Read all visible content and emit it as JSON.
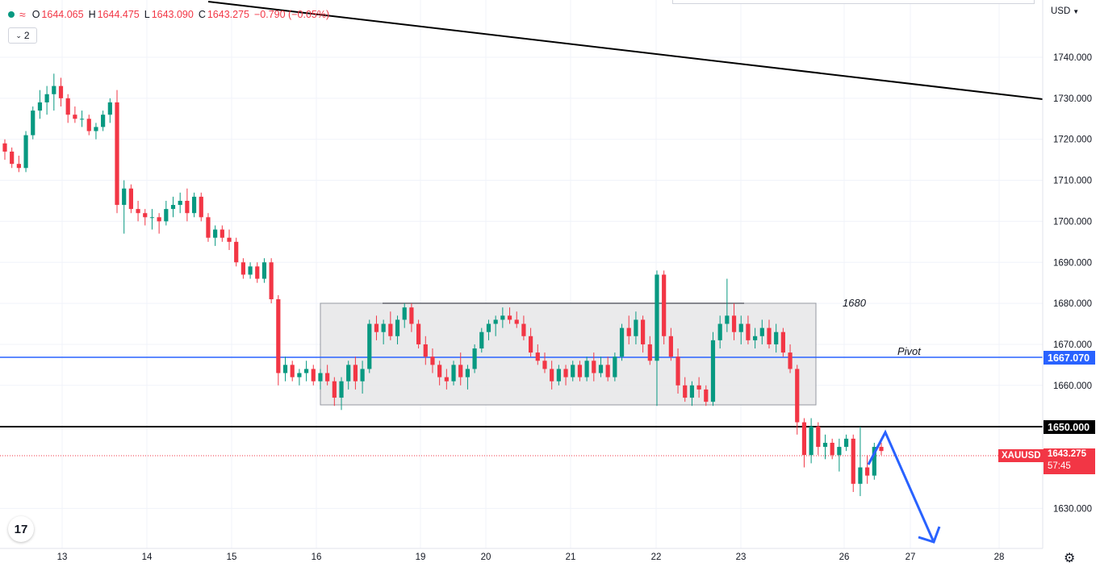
{
  "legend": {
    "open_label": "O",
    "open": "1644.065",
    "high_label": "H",
    "high": "1644.475",
    "low_label": "L",
    "low": "1643.090",
    "close_label": "C",
    "close": "1643.275",
    "change": "−0.790 (−0.05%)",
    "status_color": "#089981",
    "indicator_count": "2"
  },
  "currency": "USD",
  "symbol_label": "XAUUSD",
  "last_price": "1643.275",
  "countdown": "57:45",
  "pivot_label": "Pivot",
  "pivot_price": "1667.070",
  "level_1650": "1650.000",
  "zone_label": "1680",
  "colors": {
    "up": "#089981",
    "down": "#f23645",
    "pivot": "#2962ff",
    "arrow": "#2962ff",
    "support": "#000000"
  },
  "chart_data": {
    "type": "candlestick",
    "y_ticks": [
      "1740.000",
      "1730.000",
      "1720.000",
      "1710.000",
      "1700.000",
      "1690.000",
      "1680.000",
      "1670.000",
      "1660.000",
      "1630.000"
    ],
    "x_ticks": [
      "13",
      "14",
      "15",
      "16",
      "19",
      "20",
      "21",
      "22",
      "23",
      "26",
      "27",
      "28"
    ],
    "ylim": [
      1622,
      1750
    ],
    "candles": [
      [
        1719,
        1720,
        1715,
        1717
      ],
      [
        1717,
        1718,
        1713,
        1714
      ],
      [
        1714,
        1716,
        1712,
        1713
      ],
      [
        1713,
        1722,
        1712,
        1721
      ],
      [
        1721,
        1728,
        1720,
        1727
      ],
      [
        1727,
        1732,
        1725,
        1729
      ],
      [
        1729,
        1733,
        1726,
        1731
      ],
      [
        1731,
        1736,
        1727,
        1733
      ],
      [
        1733,
        1735,
        1728,
        1730
      ],
      [
        1730,
        1731,
        1724,
        1726
      ],
      [
        1726,
        1728,
        1724,
        1725
      ],
      [
        1725,
        1727,
        1723,
        1725
      ],
      [
        1725,
        1726,
        1721,
        1722
      ],
      [
        1722,
        1724,
        1720,
        1723
      ],
      [
        1723,
        1727,
        1722,
        1726
      ],
      [
        1726,
        1730,
        1724,
        1729
      ],
      [
        1729,
        1732,
        1702,
        1704
      ],
      [
        1704,
        1710,
        1697,
        1708
      ],
      [
        1708,
        1709,
        1702,
        1703
      ],
      [
        1703,
        1705,
        1700,
        1702
      ],
      [
        1702,
        1703,
        1699,
        1701
      ],
      [
        1701,
        1703,
        1698,
        1701
      ],
      [
        1701,
        1702,
        1697,
        1700
      ],
      [
        1700,
        1705,
        1699,
        1703
      ],
      [
        1703,
        1706,
        1701,
        1704
      ],
      [
        1704,
        1707,
        1702,
        1705
      ],
      [
        1705,
        1708,
        1700,
        1702
      ],
      [
        1702,
        1707,
        1701,
        1706
      ],
      [
        1706,
        1707,
        1700,
        1701
      ],
      [
        1701,
        1702,
        1695,
        1696
      ],
      [
        1696,
        1699,
        1694,
        1698
      ],
      [
        1698,
        1699,
        1695,
        1696
      ],
      [
        1696,
        1698,
        1693,
        1695
      ],
      [
        1695,
        1696,
        1689,
        1690
      ],
      [
        1690,
        1691,
        1686,
        1687
      ],
      [
        1687,
        1690,
        1686,
        1689
      ],
      [
        1689,
        1690,
        1685,
        1686
      ],
      [
        1686,
        1691,
        1685,
        1690
      ],
      [
        1690,
        1691,
        1680,
        1681
      ],
      [
        1681,
        1682,
        1660,
        1663
      ],
      [
        1663,
        1667,
        1661,
        1665
      ],
      [
        1665,
        1666,
        1661,
        1662
      ],
      [
        1662,
        1664,
        1660,
        1663
      ],
      [
        1663,
        1666,
        1661,
        1664
      ],
      [
        1664,
        1665,
        1660,
        1661
      ],
      [
        1661,
        1664,
        1659,
        1663
      ],
      [
        1663,
        1665,
        1660,
        1661
      ],
      [
        1661,
        1662,
        1655,
        1657
      ],
      [
        1657,
        1662,
        1654,
        1661
      ],
      [
        1661,
        1666,
        1659,
        1665
      ],
      [
        1665,
        1667,
        1659,
        1661
      ],
      [
        1661,
        1666,
        1658,
        1664
      ],
      [
        1664,
        1676,
        1663,
        1675
      ],
      [
        1675,
        1677,
        1671,
        1673
      ],
      [
        1673,
        1676,
        1670,
        1675
      ],
      [
        1675,
        1678,
        1671,
        1672
      ],
      [
        1672,
        1677,
        1670,
        1676
      ],
      [
        1676,
        1680,
        1674,
        1679
      ],
      [
        1679,
        1680,
        1673,
        1675
      ],
      [
        1675,
        1676,
        1669,
        1670
      ],
      [
        1670,
        1672,
        1665,
        1667
      ],
      [
        1667,
        1669,
        1663,
        1665
      ],
      [
        1665,
        1666,
        1660,
        1662
      ],
      [
        1662,
        1664,
        1659,
        1661
      ],
      [
        1661,
        1666,
        1660,
        1665
      ],
      [
        1665,
        1668,
        1660,
        1662
      ],
      [
        1662,
        1665,
        1659,
        1664
      ],
      [
        1664,
        1670,
        1663,
        1669
      ],
      [
        1669,
        1674,
        1668,
        1673
      ],
      [
        1673,
        1676,
        1671,
        1675
      ],
      [
        1675,
        1677,
        1672,
        1676
      ],
      [
        1676,
        1679,
        1674,
        1677
      ],
      [
        1677,
        1679,
        1675,
        1676
      ],
      [
        1676,
        1678,
        1674,
        1675
      ],
      [
        1675,
        1677,
        1671,
        1672
      ],
      [
        1672,
        1674,
        1667,
        1668
      ],
      [
        1668,
        1670,
        1665,
        1666
      ],
      [
        1666,
        1668,
        1663,
        1664
      ],
      [
        1664,
        1666,
        1659,
        1661
      ],
      [
        1661,
        1665,
        1660,
        1664
      ],
      [
        1664,
        1665,
        1660,
        1662
      ],
      [
        1662,
        1666,
        1661,
        1665
      ],
      [
        1665,
        1666,
        1661,
        1662
      ],
      [
        1662,
        1667,
        1661,
        1666
      ],
      [
        1666,
        1668,
        1661,
        1663
      ],
      [
        1663,
        1667,
        1662,
        1665
      ],
      [
        1665,
        1667,
        1661,
        1662
      ],
      [
        1662,
        1668,
        1661,
        1667
      ],
      [
        1667,
        1675,
        1666,
        1674
      ],
      [
        1674,
        1677,
        1670,
        1672
      ],
      [
        1672,
        1678,
        1670,
        1676
      ],
      [
        1676,
        1677,
        1668,
        1670
      ],
      [
        1670,
        1672,
        1665,
        1666
      ],
      [
        1666,
        1688,
        1655,
        1687
      ],
      [
        1687,
        1688,
        1670,
        1672
      ],
      [
        1672,
        1674,
        1666,
        1667
      ],
      [
        1667,
        1669,
        1658,
        1660
      ],
      [
        1660,
        1662,
        1656,
        1657
      ],
      [
        1657,
        1661,
        1655,
        1660
      ],
      [
        1660,
        1662,
        1657,
        1659
      ],
      [
        1659,
        1660,
        1655,
        1656
      ],
      [
        1656,
        1673,
        1655,
        1671
      ],
      [
        1671,
        1677,
        1669,
        1675
      ],
      [
        1675,
        1686,
        1673,
        1677
      ],
      [
        1677,
        1680,
        1671,
        1673
      ],
      [
        1673,
        1677,
        1670,
        1675
      ],
      [
        1675,
        1677,
        1670,
        1671
      ],
      [
        1671,
        1674,
        1669,
        1672
      ],
      [
        1672,
        1676,
        1670,
        1674
      ],
      [
        1674,
        1676,
        1669,
        1670
      ],
      [
        1670,
        1675,
        1668,
        1673
      ],
      [
        1673,
        1674,
        1667,
        1668
      ],
      [
        1668,
        1670,
        1663,
        1664
      ],
      [
        1664,
        1665,
        1648,
        1651
      ],
      [
        1651,
        1652,
        1640,
        1643
      ],
      [
        1643,
        1652,
        1641,
        1650
      ],
      [
        1650,
        1651,
        1643,
        1645
      ],
      [
        1645,
        1648,
        1642,
        1646
      ],
      [
        1646,
        1647,
        1642,
        1643
      ],
      [
        1643,
        1647,
        1639,
        1645
      ],
      [
        1645,
        1648,
        1644,
        1647
      ],
      [
        1647,
        1648,
        1634,
        1636
      ],
      [
        1636,
        1650,
        1633,
        1640
      ],
      [
        1640,
        1643,
        1636,
        1638
      ],
      [
        1638,
        1646,
        1637,
        1645
      ],
      [
        1645,
        1646,
        1643,
        1644
      ]
    ]
  }
}
